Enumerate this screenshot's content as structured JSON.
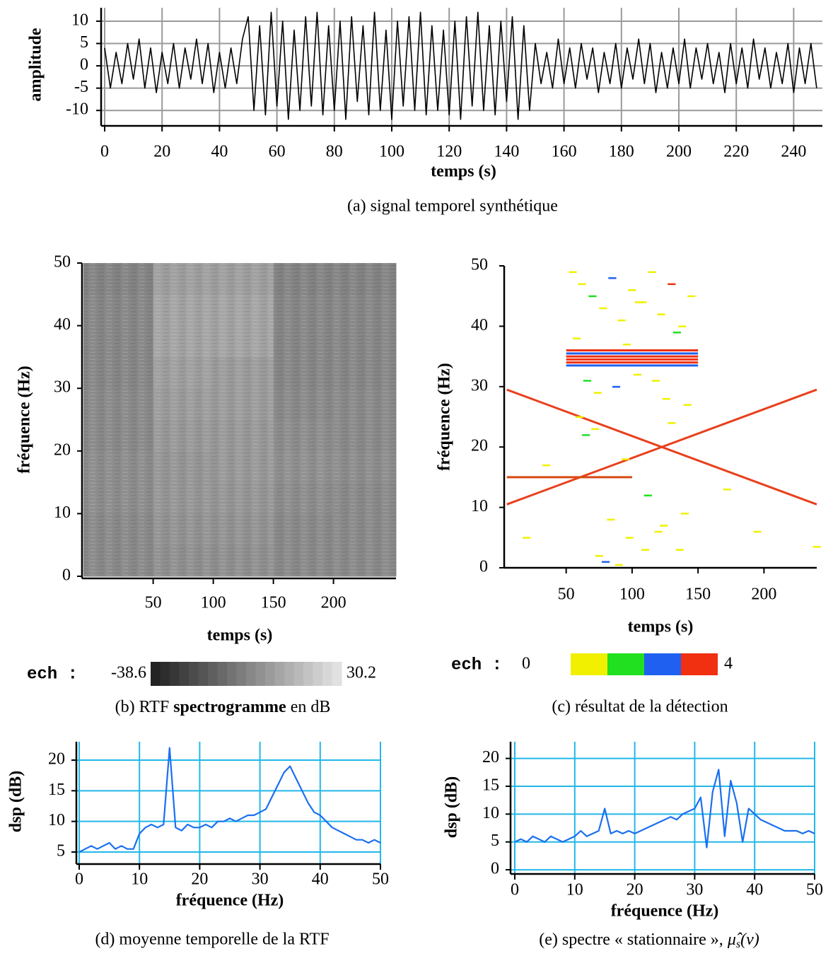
{
  "chart_data": [
    {
      "type": "line",
      "xlabel": "temps (s)",
      "ylabel": "amplitude",
      "caption": "(a) signal temporel synthétique",
      "color": "#000000",
      "grid": true,
      "grid_color": "#9a9a9a",
      "xlim": [
        0,
        250
      ],
      "xticks": [
        0,
        20,
        40,
        60,
        80,
        100,
        120,
        140,
        160,
        180,
        200,
        220,
        240
      ],
      "ylim": [
        -12.5,
        13
      ],
      "yticks": [
        -10,
        -5,
        0,
        5,
        10
      ],
      "x": [
        0,
        2,
        4,
        6,
        8,
        10,
        12,
        14,
        16,
        18,
        20,
        22,
        24,
        26,
        28,
        30,
        32,
        34,
        36,
        38,
        40,
        42,
        44,
        46,
        48,
        50,
        52,
        54,
        56,
        58,
        60,
        62,
        64,
        66,
        68,
        70,
        72,
        74,
        76,
        78,
        80,
        82,
        84,
        86,
        88,
        90,
        92,
        94,
        96,
        98,
        100,
        102,
        104,
        106,
        108,
        110,
        112,
        114,
        116,
        118,
        120,
        122,
        124,
        126,
        128,
        130,
        132,
        134,
        136,
        138,
        140,
        142,
        144,
        146,
        148,
        150,
        152,
        154,
        156,
        158,
        160,
        162,
        164,
        166,
        168,
        170,
        172,
        174,
        176,
        178,
        180,
        182,
        184,
        186,
        188,
        190,
        192,
        194,
        196,
        198,
        200,
        202,
        204,
        206,
        208,
        210,
        212,
        214,
        216,
        218,
        220,
        222,
        224,
        226,
        228,
        230,
        232,
        234,
        236,
        238,
        240,
        242,
        244,
        246,
        248
      ],
      "values": [
        4,
        -5,
        3,
        -4,
        5,
        -3,
        6,
        -5,
        4,
        -6,
        3,
        -4,
        5,
        -5,
        4,
        -3,
        6,
        -4,
        5,
        -6,
        3,
        -5,
        4,
        -4,
        6,
        11,
        -10,
        9,
        -11,
        12,
        -9,
        10,
        -12,
        8,
        -10,
        11,
        -9,
        12,
        -11,
        9,
        -10,
        10,
        -12,
        11,
        -8,
        9,
        -11,
        12,
        -10,
        8,
        -12,
        10,
        -9,
        11,
        -10,
        12,
        -11,
        9,
        -10,
        8,
        -11,
        10,
        -12,
        11,
        -9,
        12,
        -10,
        9,
        -11,
        10,
        -8,
        11,
        -12,
        9,
        -10,
        5,
        -4,
        3,
        -5,
        6,
        -4,
        4,
        -5,
        5,
        -3,
        4,
        -6,
        3,
        -4,
        5,
        -5,
        4,
        -3,
        6,
        -4,
        5,
        -6,
        3,
        -5,
        4,
        -4,
        6,
        -5,
        4,
        -3,
        5,
        -4,
        3,
        -6,
        5,
        -4,
        4,
        -5,
        6,
        -3,
        4,
        -5,
        3,
        -4,
        5,
        -6,
        4,
        -4,
        5,
        -5
      ]
    },
    {
      "type": "heatmap",
      "xlabel": "temps (s)",
      "ylabel": "fréquence (Hz)",
      "caption": {
        "prefix": "(b) RTF",
        "bold": "spectrogramme",
        "suffix": "en dB"
      },
      "xlim": [
        -8,
        252
      ],
      "xticks": [
        50,
        100,
        150,
        200
      ],
      "ylim": [
        0,
        50
      ],
      "yticks": [
        0,
        10,
        20,
        30,
        40,
        50
      ],
      "time_edges": [
        -8,
        50,
        100,
        150,
        200,
        252
      ],
      "freq_edges": [
        0,
        5,
        10,
        15,
        20,
        25,
        30,
        35,
        40,
        45,
        50
      ],
      "values": [
        [
          -1,
          1,
          1,
          -1,
          -1
        ],
        [
          -1,
          2,
          2,
          -1,
          -1
        ],
        [
          0,
          3,
          3,
          0,
          -1
        ],
        [
          0,
          3,
          4,
          1,
          0
        ],
        [
          -1,
          4,
          4,
          0,
          -1
        ],
        [
          -1,
          5,
          5,
          -1,
          -1
        ],
        [
          -2,
          6,
          5,
          -2,
          -2
        ],
        [
          -2,
          8,
          8,
          -2,
          -2
        ],
        [
          -2,
          8,
          8,
          -2,
          -2
        ],
        [
          -3,
          6,
          6,
          -3,
          -3
        ]
      ],
      "colorbar": {
        "label": "ech :",
        "clim": [
          -38.6,
          30.2
        ]
      }
    },
    {
      "type": "detection",
      "xlabel": "temps (s)",
      "ylabel": "fréquence (Hz)",
      "caption": "(c) résultat de la détection",
      "xlim": [
        3,
        240
      ],
      "xticks": [
        50,
        100,
        150,
        200
      ],
      "ylim": [
        0,
        50
      ],
      "yticks": [
        0,
        10,
        20,
        30,
        40,
        50
      ],
      "lines": [
        {
          "x": [
            5,
            240
          ],
          "y": [
            10.5,
            29.5
          ],
          "color": "#e8401c"
        },
        {
          "x": [
            5,
            240
          ],
          "y": [
            29.5,
            10.5
          ],
          "color": "#e8401c"
        },
        {
          "x": [
            5,
            100
          ],
          "y": [
            15,
            15
          ],
          "color": "#d84a10"
        },
        {
          "x": [
            50,
            150
          ],
          "y": [
            33.5,
            33.5
          ],
          "color": "#2060f0"
        },
        {
          "x": [
            50,
            150
          ],
          "y": [
            34,
            34
          ],
          "color": "#f03010"
        },
        {
          "x": [
            50,
            150
          ],
          "y": [
            34.5,
            34.5
          ],
          "color": "#f03010"
        },
        {
          "x": [
            50,
            150
          ],
          "y": [
            35,
            35
          ],
          "color": "#f03010"
        },
        {
          "x": [
            50,
            150
          ],
          "y": [
            35.5,
            35.5
          ],
          "color": "#2060f0"
        },
        {
          "x": [
            50,
            150
          ],
          "y": [
            36,
            36
          ],
          "color": "#f03010"
        }
      ],
      "detections": {
        "x": [
          55,
          62,
          70,
          78,
          85,
          92,
          100,
          108,
          115,
          122,
          130,
          138,
          145,
          58,
          66,
          74,
          88,
          96,
          104,
          118,
          126,
          134,
          142,
          60,
          72,
          84,
          98,
          112,
          124,
          136,
          80,
          90,
          110,
          120,
          75,
          95,
          130,
          140,
          65,
          105,
          35,
          172,
          195,
          240,
          20
        ],
        "y": [
          49,
          47,
          45,
          43,
          48,
          41,
          46,
          44,
          49,
          42,
          47,
          40,
          45,
          38,
          31,
          29,
          30,
          37,
          32,
          31,
          28,
          39,
          27,
          25,
          23,
          8,
          5,
          12,
          7,
          3,
          1,
          0.5,
          3,
          6,
          2,
          18,
          24,
          9,
          22,
          44,
          17,
          13,
          6,
          3.5,
          5
        ],
        "level": [
          1,
          1,
          2,
          1,
          3,
          1,
          1,
          1,
          1,
          1,
          4,
          1,
          1,
          1,
          2,
          1,
          3,
          1,
          1,
          1,
          1,
          2,
          1,
          1,
          1,
          1,
          1,
          2,
          1,
          1,
          3,
          1,
          1,
          1,
          1,
          1,
          1,
          1,
          2,
          1,
          1,
          1,
          1,
          1,
          1
        ]
      },
      "colorbar": {
        "label": "ech :",
        "clim": [
          0,
          4
        ],
        "colors": [
          "#f0f000",
          "#20e020",
          "#2060f0",
          "#f03010"
        ]
      }
    },
    {
      "type": "line",
      "xlabel": "fréquence (Hz)",
      "ylabel": "dsp (dB)",
      "caption": "(d) moyenne temporelle de la RTF",
      "color": "#1a6ff0",
      "grid": true,
      "grid_color": "#22b8e8",
      "xlim": [
        0,
        50
      ],
      "xticks": [
        0,
        10,
        20,
        30,
        40,
        50
      ],
      "ylim": [
        3.5,
        23
      ],
      "yticks": [
        5,
        10,
        15,
        20
      ],
      "x": [
        0,
        1,
        2,
        3,
        4,
        5,
        6,
        7,
        8,
        9,
        10,
        11,
        12,
        13,
        14,
        15,
        16,
        17,
        18,
        19,
        20,
        21,
        22,
        23,
        24,
        25,
        26,
        27,
        28,
        29,
        30,
        31,
        32,
        33,
        34,
        35,
        36,
        37,
        38,
        39,
        40,
        41,
        42,
        43,
        44,
        45,
        46,
        47,
        48,
        49,
        50
      ],
      "values": [
        5,
        5.5,
        6,
        5.5,
        6,
        6.5,
        5.5,
        6,
        5.5,
        5.5,
        8,
        9,
        9.5,
        9,
        9.5,
        22,
        9,
        8.5,
        9.5,
        9,
        9,
        9.5,
        9,
        10,
        10,
        10.5,
        10,
        10.5,
        11,
        11,
        11.5,
        12,
        14,
        16,
        18,
        19,
        17,
        15,
        13,
        11.5,
        11,
        10,
        9,
        8.5,
        8,
        7.5,
        7,
        7,
        6.5,
        7,
        6.5
      ]
    },
    {
      "type": "line",
      "xlabel": "fréquence (Hz)",
      "ylabel": "dsp (dB)",
      "caption": {
        "text": "(e) spectre « stationnaire »,",
        "symbol": "μ̂",
        "sub": "s",
        "arg": "(ν)"
      },
      "color": "#1a6ff0",
      "grid": true,
      "grid_color": "#22b8e8",
      "xlim": [
        0,
        50
      ],
      "xticks": [
        0,
        10,
        20,
        30,
        40,
        50
      ],
      "ylim": [
        -0.5,
        23
      ],
      "yticks": [
        0,
        5,
        10,
        15,
        20
      ],
      "x": [
        0,
        1,
        2,
        3,
        4,
        5,
        6,
        7,
        8,
        9,
        10,
        11,
        12,
        13,
        14,
        15,
        16,
        17,
        18,
        19,
        20,
        21,
        22,
        23,
        24,
        25,
        26,
        27,
        28,
        29,
        30,
        31,
        32,
        33,
        34,
        35,
        36,
        37,
        38,
        39,
        40,
        41,
        42,
        43,
        44,
        45,
        46,
        47,
        48,
        49,
        50
      ],
      "values": [
        5,
        5.5,
        5,
        6,
        5.5,
        5,
        6,
        5.5,
        5,
        5.5,
        6,
        7,
        6,
        6.5,
        7,
        11,
        6.5,
        7,
        6.5,
        7,
        6.5,
        7,
        7.5,
        8,
        8.5,
        9,
        9.5,
        9,
        10,
        10.5,
        11,
        13,
        4,
        14,
        18,
        6,
        16,
        12,
        5,
        11,
        10,
        9,
        8.5,
        8,
        7.5,
        7,
        7,
        7,
        6.5,
        7,
        6.5
      ]
    }
  ]
}
